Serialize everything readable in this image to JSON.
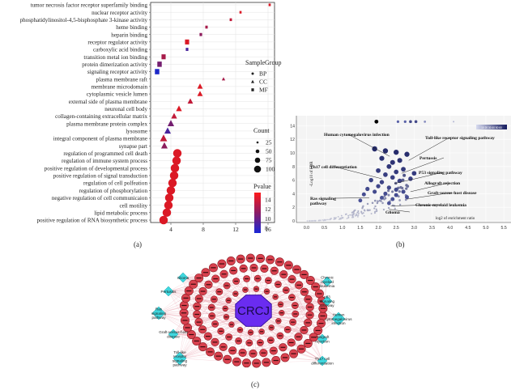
{
  "panel_labels": {
    "a": "(a)",
    "b": "(b)",
    "c": "(c)"
  },
  "chart_data": [
    {
      "type": "scatter",
      "panel": "a",
      "categories": [
        "tumor necrosis factor receptor superfamily binding",
        "nuclear receptor activity",
        "phosphatidylinositol-4,5-bisphosphate 3-kinase activity",
        "heme binding",
        "heparin binding",
        "receptor regulator activity",
        "carboxylic acid binding",
        "transition metal ion binding",
        "protein dimerization activity",
        "signaling receptor activity",
        "plasma membrane raft",
        "membrane microdomain",
        "cytoplasmic vesicle lumen",
        "external side of plasma membrane",
        "neuronal cell body",
        "collagen-containing extracellular matrix",
        "plasma membrane protein complex",
        "lysosome",
        "integral component of plasma membrane",
        "synapse part",
        "regulation of programmed cell death",
        "regulation of immune system process",
        "positive regulation of developmental process",
        "positive regulation of signal transduction",
        "regulation of cell polfeation",
        "regulation of phosphorylation",
        "negative regulation of cell communicaion",
        "cell motility",
        "lipid metabolic process",
        "positive regulation of RNA biosynthetic process"
      ],
      "x_ticks": [
        "4",
        "8",
        "12",
        "16"
      ],
      "xlim": [
        1.5,
        16.8
      ],
      "points": [
        {
          "x": 16.2,
          "group": "MF",
          "count": 3,
          "pvalue": 15
        },
        {
          "x": 12.6,
          "group": "MF",
          "count": 3,
          "pvalue": 15
        },
        {
          "x": 11.4,
          "group": "MF",
          "count": 4,
          "pvalue": 14
        },
        {
          "x": 8.4,
          "group": "MF",
          "count": 5,
          "pvalue": 13
        },
        {
          "x": 7.7,
          "group": "MF",
          "count": 6,
          "pvalue": 12
        },
        {
          "x": 6.0,
          "group": "MF",
          "count": 25,
          "pvalue": 15
        },
        {
          "x": 6.0,
          "group": "MF",
          "count": 6,
          "pvalue": 9
        },
        {
          "x": 3.1,
          "group": "MF",
          "count": 25,
          "pvalue": 13
        },
        {
          "x": 2.6,
          "group": "MF",
          "count": 30,
          "pvalue": 11
        },
        {
          "x": 2.3,
          "group": "MF",
          "count": 30,
          "pvalue": 7
        },
        {
          "x": 10.5,
          "group": "CC",
          "count": 6,
          "pvalue": 13
        },
        {
          "x": 7.6,
          "group": "CC",
          "count": 25,
          "pvalue": 15
        },
        {
          "x": 7.6,
          "group": "CC",
          "count": 25,
          "pvalue": 15
        },
        {
          "x": 6.4,
          "group": "CC",
          "count": 25,
          "pvalue": 14
        },
        {
          "x": 5.0,
          "group": "CC",
          "count": 30,
          "pvalue": 15
        },
        {
          "x": 4.4,
          "group": "CC",
          "count": 30,
          "pvalue": 14
        },
        {
          "x": 4.0,
          "group": "CC",
          "count": 40,
          "pvalue": 11
        },
        {
          "x": 3.6,
          "group": "CC",
          "count": 40,
          "pvalue": 9
        },
        {
          "x": 3.1,
          "group": "CC",
          "count": 50,
          "pvalue": 14
        },
        {
          "x": 3.2,
          "group": "CC",
          "count": 40,
          "pvalue": 12
        },
        {
          "x": 4.8,
          "group": "BP",
          "count": 75,
          "pvalue": 15
        },
        {
          "x": 4.7,
          "group": "BP",
          "count": 75,
          "pvalue": 15
        },
        {
          "x": 4.5,
          "group": "BP",
          "count": 75,
          "pvalue": 15
        },
        {
          "x": 4.4,
          "group": "BP",
          "count": 75,
          "pvalue": 15
        },
        {
          "x": 4.2,
          "group": "BP",
          "count": 75,
          "pvalue": 15
        },
        {
          "x": 4.0,
          "group": "BP",
          "count": 75,
          "pvalue": 15
        },
        {
          "x": 3.8,
          "group": "BP",
          "count": 75,
          "pvalue": 15
        },
        {
          "x": 3.7,
          "group": "BP",
          "count": 75,
          "pvalue": 15
        },
        {
          "x": 3.5,
          "group": "BP",
          "count": 75,
          "pvalue": 15
        },
        {
          "x": 3.1,
          "group": "BP",
          "count": 75,
          "pvalue": 15
        }
      ],
      "legend": {
        "samplegroup_title": "SampleGroup",
        "groups": [
          "BP",
          "CC",
          "MF"
        ],
        "count_title": "Count",
        "count_values": [
          "25",
          "50",
          "75",
          "100"
        ],
        "pvalue_title": "Pvalue",
        "pvalue_ticks": [
          "14",
          "12",
          "10",
          "8"
        ],
        "pvalue_range": [
          7,
          15.5
        ],
        "colors": {
          "high": "#e8191c",
          "mid": "#7a1d6a",
          "low": "#1c28c8"
        }
      }
    },
    {
      "type": "scatter",
      "panel": "b",
      "ylabel": "-Log10 of FDR",
      "xlabel": "log2 of enrichment ratio",
      "x_ticks": [
        "0.0",
        "0.5",
        "1.0",
        "1.5",
        "2.0",
        "2.5",
        "3.0",
        "3.5",
        "4.0",
        "4.5",
        "5.0",
        "5.5"
      ],
      "y_ticks": [
        "0",
        "2",
        "4",
        "6",
        "8",
        "10",
        "12",
        "14"
      ],
      "xlim": [
        -0.1,
        5.7
      ],
      "ylim": [
        0,
        15
      ],
      "colorbar_label": "10 20 30 40 50 60",
      "annotations": [
        {
          "label": "Human cytomegalovirus infection",
          "x": 2.32,
          "y": 9.5
        },
        {
          "label": "Toll-like receptor signaling pathway",
          "x": 2.85,
          "y": 8.9
        },
        {
          "label": "Pertussis",
          "x": 2.65,
          "y": 7.0
        },
        {
          "label": "Th17 cell differentiation",
          "x": 2.1,
          "y": 6.2
        },
        {
          "label": "P53 signaling pathway",
          "x": 2.45,
          "y": 5.5
        },
        {
          "label": "Allograft rejection",
          "x": 2.9,
          "y": 4.3
        },
        {
          "label": "Graft-versus-host disease",
          "x": 2.8,
          "y": 3.2
        },
        {
          "label": "Ras signaling pathway",
          "x": 1.75,
          "y": 3.4
        },
        {
          "label": "Chronic myeloid leukemia",
          "x": 2.35,
          "y": 2.2
        },
        {
          "label": "Glioma",
          "x": 2.3,
          "y": 1.7
        }
      ]
    }
  ],
  "network": {
    "center_label": "CRCJ",
    "pathways": [
      "Glioma",
      "Pertussis",
      "Ras signaling pathway",
      "Graft-versus-host disease",
      "Toll-like receptor signaling pathway",
      "Chronic myeloid leukemia",
      "p53 signaling pathway",
      "Human cytomegalovirus infection",
      "Allograft rejection",
      "Th17 cell differentiation"
    ]
  }
}
